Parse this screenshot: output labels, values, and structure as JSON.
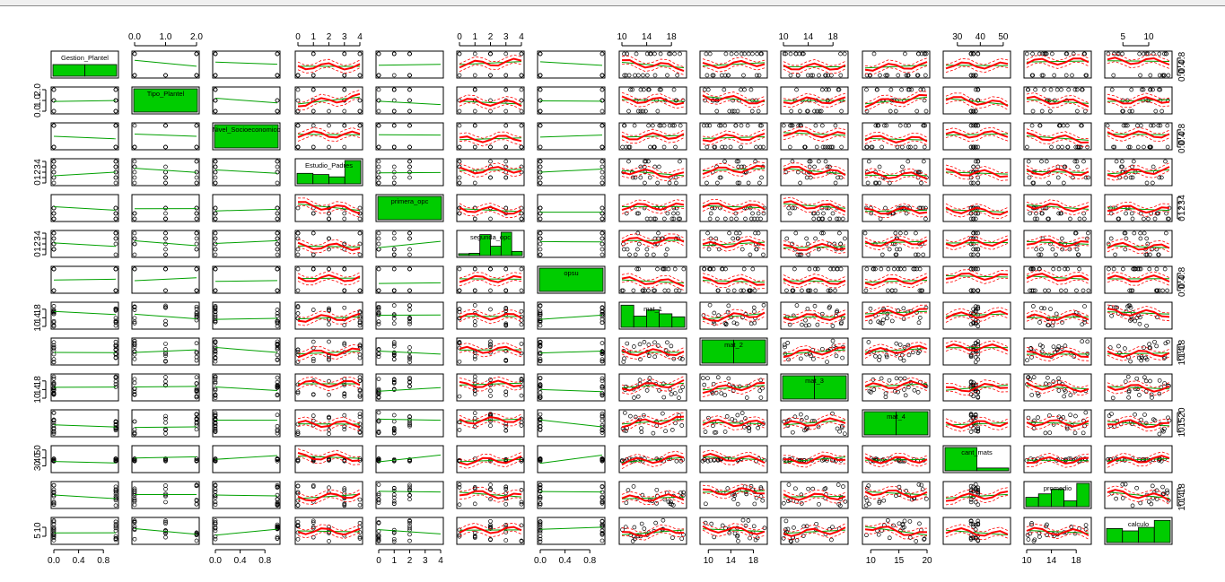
{
  "chart_data": {
    "type": "scatter",
    "variables": [
      {
        "name": "Gestion_Plantel",
        "diag": "bar",
        "tick_labels": [
          "0.0",
          "0.4",
          "0.8"
        ],
        "tick_values": [
          0,
          0.4,
          0.8
        ],
        "range": [
          0,
          1
        ]
      },
      {
        "name": "Tipo_Plantel",
        "diag": "bar",
        "tick_labels": [
          "0.0",
          "1.0",
          "2.0"
        ],
        "tick_values": [
          0,
          1,
          2
        ],
        "range": [
          0,
          2
        ]
      },
      {
        "name": "Nivel_Socioeconomico",
        "diag": "bar",
        "tick_labels": [
          "0.0",
          "0.4",
          "0.8"
        ],
        "tick_values": [
          0,
          0.4,
          0.8
        ],
        "range": [
          0,
          1
        ]
      },
      {
        "name": "Estudio_Padres",
        "diag": "hist",
        "tick_labels": [
          "0",
          "1",
          "2",
          "3",
          "4"
        ],
        "tick_values": [
          0,
          1,
          2,
          3,
          4
        ],
        "range": [
          0,
          4
        ]
      },
      {
        "name": "primera_opc",
        "diag": "bar",
        "tick_labels": [
          "0",
          "1",
          "2",
          "3",
          "4"
        ],
        "tick_values": [
          0,
          1,
          2,
          3,
          4
        ],
        "range": [
          0,
          4
        ]
      },
      {
        "name": "segunda_opc",
        "diag": "hist",
        "tick_labels": [
          "0",
          "1",
          "2",
          "3",
          "4"
        ],
        "tick_values": [
          0,
          1,
          2,
          3,
          4
        ],
        "range": [
          0,
          4
        ]
      },
      {
        "name": "opsu",
        "diag": "bar",
        "tick_labels": [
          "0.0",
          "0.4",
          "0.8"
        ],
        "tick_values": [
          0,
          0.4,
          0.8
        ],
        "range": [
          0,
          1
        ]
      },
      {
        "name": "mat_1",
        "diag": "hist",
        "tick_labels": [
          "10",
          "14",
          "18"
        ],
        "tick_values": [
          10,
          14,
          18
        ],
        "range": [
          10,
          20
        ]
      },
      {
        "name": "mat_2",
        "diag": "hist",
        "tick_labels": [
          "10",
          "14",
          "18"
        ],
        "tick_values": [
          10,
          14,
          18
        ],
        "range": [
          9,
          20
        ]
      },
      {
        "name": "mat_3",
        "diag": "hist",
        "tick_labels": [
          "10",
          "14",
          "18"
        ],
        "tick_values": [
          10,
          14,
          18
        ],
        "range": [
          10,
          20
        ]
      },
      {
        "name": "mat_4",
        "diag": "hist",
        "tick_labels": [
          "10",
          "15",
          "20"
        ],
        "tick_values": [
          10,
          15,
          20
        ],
        "range": [
          9,
          20
        ]
      },
      {
        "name": "cant_mats",
        "diag": "hist",
        "tick_labels": [
          "30",
          "40",
          "50"
        ],
        "tick_values": [
          30,
          40,
          50
        ],
        "range": [
          25,
          52
        ]
      },
      {
        "name": "promedio",
        "diag": "hist",
        "tick_labels": [
          "10",
          "14",
          "18"
        ],
        "tick_values": [
          10,
          14,
          18
        ],
        "range": [
          10,
          20
        ]
      },
      {
        "name": "calculo",
        "diag": "hist",
        "tick_labels": [
          "5",
          "10"
        ],
        "tick_values": [
          5,
          10
        ],
        "range": [
          2,
          14
        ]
      }
    ],
    "diagonal_bars": {
      "Gestion_Plantel": [
        0.5,
        0.5
      ],
      "Tipo_Plantel": [
        1.0
      ],
      "Nivel_Socioeconomico": [
        1.0
      ],
      "Estudio_Padres": [
        0.45,
        0.4,
        0.3,
        1.0
      ],
      "primera_opc": [
        1.0
      ],
      "segunda_opc": [
        0.08,
        0.1,
        0.9,
        0.4,
        1.0,
        0.18
      ],
      "opsu": [
        1.0
      ],
      "mat_1": [
        0.95,
        0.48,
        0.75,
        0.58,
        0.45
      ],
      "mat_2": [
        1.0,
        1.0
      ],
      "mat_3": [
        1.0,
        1.0
      ],
      "mat_4": [
        1.0,
        1.0
      ],
      "cant_mats": [
        1.0,
        0.12
      ],
      "promedio": [
        0.4,
        0.55,
        0.75,
        0.25,
        1.0
      ],
      "calculo": [
        0.6,
        0.5,
        0.65,
        0.95
      ]
    },
    "series": [
      {
        "name": "",
        "color": "#00a000",
        "role": "linear fit"
      },
      {
        "name": "",
        "color": "#ff0000",
        "role": "smooth fit"
      },
      {
        "name": "",
        "color": "#ff0000",
        "role": "spread band"
      }
    ],
    "colors": {
      "bar_fill": "#00cc00",
      "fit_line": "#00a000",
      "smooth_line": "#ff0000",
      "points": "#000000",
      "frame": "#000000"
    },
    "layout_notes": {
      "axes_top": "odd variables from the 2nd",
      "axes_bottom": "odd variables from the 1st",
      "axes_left": "even variables from the 1st",
      "axes_right": "odd variables from the 1st",
      "grid": false,
      "legend": "none"
    }
  }
}
